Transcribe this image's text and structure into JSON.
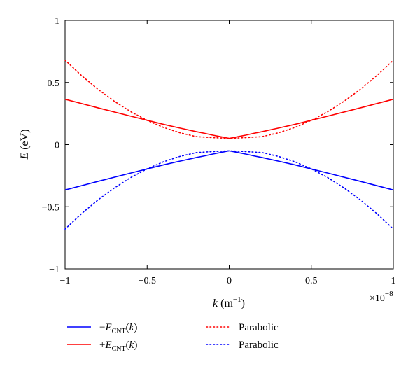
{
  "chart_data": {
    "type": "line",
    "xlabel": "k (m⁻¹)",
    "xlabel_italic": "k",
    "xlabel_unit": " (m",
    "xlabel_exp": "−1",
    "xlabel_close": ")",
    "ylabel": "E (eV)",
    "ylabel_italic": "E",
    "ylabel_unit": " (eV)",
    "x_multiplier_base": "×10",
    "x_multiplier_exp": "−8",
    "xlim": [
      -1,
      1
    ],
    "ylim": [
      -1,
      1
    ],
    "x_ticks": [
      -1,
      -0.5,
      0,
      0.5,
      1
    ],
    "x_tick_labels": [
      "−1",
      "−0.5",
      "0",
      "0.5",
      "1"
    ],
    "y_ticks": [
      -1,
      -0.5,
      0,
      0.5,
      1
    ],
    "y_tick_labels": [
      "−1",
      "−0.5",
      "0",
      "0.5",
      "1"
    ],
    "grid": false,
    "legend_position": "bottom",
    "series": [
      {
        "name": "−E_CNT(k)",
        "legend_sign": "−",
        "legend_var": "E",
        "legend_sub": "CNT",
        "legend_arg": "(k)",
        "color": "#0000ff",
        "style": "solid",
        "x": [
          -1,
          -0.8,
          -0.6,
          -0.4,
          -0.3,
          -0.2,
          -0.15,
          -0.1,
          -0.05,
          0,
          0.05,
          0.1,
          0.15,
          0.2,
          0.3,
          0.4,
          0.6,
          0.8,
          1
        ],
        "y": [
          -0.365,
          -0.296,
          -0.229,
          -0.163,
          -0.133,
          -0.104,
          -0.091,
          -0.076,
          -0.063,
          -0.05,
          -0.063,
          -0.076,
          -0.091,
          -0.104,
          -0.133,
          -0.163,
          -0.229,
          -0.296,
          -0.365
        ]
      },
      {
        "name": "+E_CNT(k)",
        "legend_sign": "+",
        "legend_var": "E",
        "legend_sub": "CNT",
        "legend_arg": "(k)",
        "color": "#ff0000",
        "style": "solid",
        "x": [
          -1,
          -0.8,
          -0.6,
          -0.4,
          -0.3,
          -0.2,
          -0.15,
          -0.1,
          -0.05,
          0,
          0.05,
          0.1,
          0.15,
          0.2,
          0.3,
          0.4,
          0.6,
          0.8,
          1
        ],
        "y": [
          0.365,
          0.296,
          0.229,
          0.163,
          0.133,
          0.104,
          0.091,
          0.076,
          0.063,
          0.05,
          0.063,
          0.076,
          0.091,
          0.104,
          0.133,
          0.163,
          0.229,
          0.296,
          0.365
        ]
      },
      {
        "name": "Parabolic",
        "color": "#ff0000",
        "style": "dotted",
        "x": [
          -1,
          -0.9,
          -0.8,
          -0.7,
          -0.6,
          -0.5,
          -0.4,
          -0.3,
          -0.2,
          -0.1,
          0,
          0.1,
          0.2,
          0.3,
          0.4,
          0.5,
          0.6,
          0.7,
          0.8,
          0.9,
          1
        ],
        "y": [
          0.68,
          0.556,
          0.446,
          0.349,
          0.265,
          0.195,
          0.138,
          0.095,
          0.064,
          0.056,
          0.05,
          0.056,
          0.064,
          0.095,
          0.138,
          0.195,
          0.265,
          0.349,
          0.446,
          0.556,
          0.68
        ]
      },
      {
        "name": "Parabolic",
        "color": "#0000ff",
        "style": "dotted",
        "x": [
          -1,
          -0.9,
          -0.8,
          -0.7,
          -0.6,
          -0.5,
          -0.4,
          -0.3,
          -0.2,
          -0.1,
          0,
          0.1,
          0.2,
          0.3,
          0.4,
          0.5,
          0.6,
          0.7,
          0.8,
          0.9,
          1
        ],
        "y": [
          -0.68,
          -0.556,
          -0.446,
          -0.349,
          -0.265,
          -0.195,
          -0.138,
          -0.095,
          -0.064,
          -0.056,
          -0.05,
          -0.056,
          -0.064,
          -0.095,
          -0.138,
          -0.195,
          -0.265,
          -0.349,
          -0.446,
          -0.556,
          -0.68
        ]
      }
    ],
    "legend_order": [
      0,
      2,
      1,
      3
    ]
  }
}
